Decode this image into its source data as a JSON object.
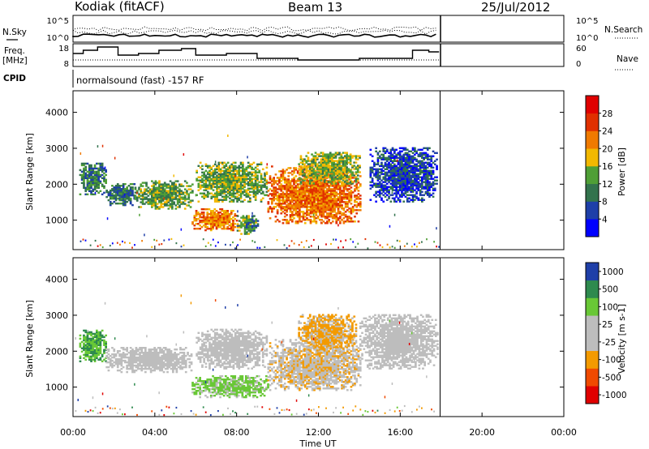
{
  "header": {
    "station": "Kodiak (fitACF)",
    "beam": "Beam 13",
    "date": "25/Jul/2012"
  },
  "sidebar": {
    "nsky": "N.Sky",
    "freq": "Freq.",
    "freq_unit": "[MHz]",
    "cpid": "CPID",
    "nsearch": "N.Search",
    "nave": "Nave"
  },
  "noise_panel": {
    "left_ticks": [
      "10^5",
      "10^0"
    ],
    "right_ticks": [
      "10^5",
      "10^0"
    ]
  },
  "freq_panel": {
    "left_ticks": [
      "18",
      "8"
    ],
    "right_ticks": [
      "60",
      "0"
    ]
  },
  "cpid_text": "normalsound (fast) -157 RF",
  "colors": {
    "power_scale": [
      "#0000ff",
      "#1e3fa8",
      "#33734d",
      "#4f9f36",
      "#f2b800",
      "#f07a00",
      "#e03000",
      "#e00000"
    ],
    "velocity_scale": [
      "#e00000",
      "#f04a00",
      "#f39a00",
      "#bdbdbd",
      "#bdbdbd",
      "#69c836",
      "#2e8a4e",
      "#1f3fa8"
    ]
  },
  "chart_data": [
    {
      "type": "heatmap",
      "name": "power",
      "ylabel": "Slant Range [km]",
      "yticks": [
        1000,
        2000,
        3000,
        4000
      ],
      "ylim": [
        180,
        4600
      ],
      "xlim": [
        0,
        24
      ],
      "colorbar": {
        "label": "Power [dB]",
        "ticks": [
          "4",
          "8",
          "12",
          "16",
          "20",
          "24",
          "28"
        ],
        "range": [
          0,
          32
        ]
      },
      "echo_regions": [
        {
          "t0": 0.3,
          "t1": 1.6,
          "r0": 1700,
          "r1": 2600,
          "level": 10
        },
        {
          "t0": 1.6,
          "t1": 3.0,
          "r0": 1400,
          "r1": 2000,
          "level": 9
        },
        {
          "t0": 3.0,
          "t1": 5.8,
          "r0": 1300,
          "r1": 2100,
          "level": 13
        },
        {
          "t0": 5.8,
          "t1": 8.0,
          "r0": 700,
          "r1": 1300,
          "level": 22
        },
        {
          "t0": 6.0,
          "t1": 9.5,
          "r0": 1500,
          "r1": 2600,
          "level": 14
        },
        {
          "t0": 8.0,
          "t1": 9.0,
          "r0": 600,
          "r1": 1100,
          "level": 12
        },
        {
          "t0": 9.5,
          "t1": 14.0,
          "r0": 900,
          "r1": 2500,
          "level": 23
        },
        {
          "t0": 11.0,
          "t1": 14.0,
          "r0": 2000,
          "r1": 2900,
          "level": 15
        },
        {
          "t0": 14.5,
          "t1": 17.8,
          "r0": 1500,
          "r1": 3000,
          "level": 6
        }
      ]
    },
    {
      "type": "heatmap",
      "name": "velocity",
      "xlabel": "Time UT",
      "ylabel": "Slant Range [km]",
      "xticks": [
        "00:00",
        "04:00",
        "08:00",
        "12:00",
        "16:00",
        "20:00",
        "00:00"
      ],
      "yticks": [
        1000,
        2000,
        3000,
        4000
      ],
      "ylim": [
        180,
        4600
      ],
      "xlim": [
        0,
        24
      ],
      "colorbar": {
        "label": "Velocity [m s-1]",
        "ticks": [
          "1000",
          "500",
          "100",
          "25",
          "-25",
          "-100",
          "-500",
          "-1000"
        ],
        "range": [
          -1000,
          1000
        ]
      },
      "echo_regions": [
        {
          "t0": 0.3,
          "t1": 1.6,
          "r0": 1700,
          "r1": 2600,
          "vel": 500
        },
        {
          "t0": 1.6,
          "t1": 5.8,
          "r0": 1400,
          "r1": 2100,
          "vel": 0
        },
        {
          "t0": 5.8,
          "t1": 9.5,
          "r0": 700,
          "r1": 1300,
          "vel": 300
        },
        {
          "t0": 6.0,
          "t1": 9.5,
          "r0": 1500,
          "r1": 2600,
          "vel": 0
        },
        {
          "t0": 9.5,
          "t1": 14.0,
          "r0": 900,
          "r1": 2300,
          "vel": -200
        },
        {
          "t0": 11.0,
          "t1": 13.8,
          "r0": 2000,
          "r1": 3000,
          "vel": -300
        },
        {
          "t0": 14.0,
          "t1": 17.8,
          "r0": 1500,
          "r1": 3000,
          "vel": 60
        }
      ]
    }
  ]
}
